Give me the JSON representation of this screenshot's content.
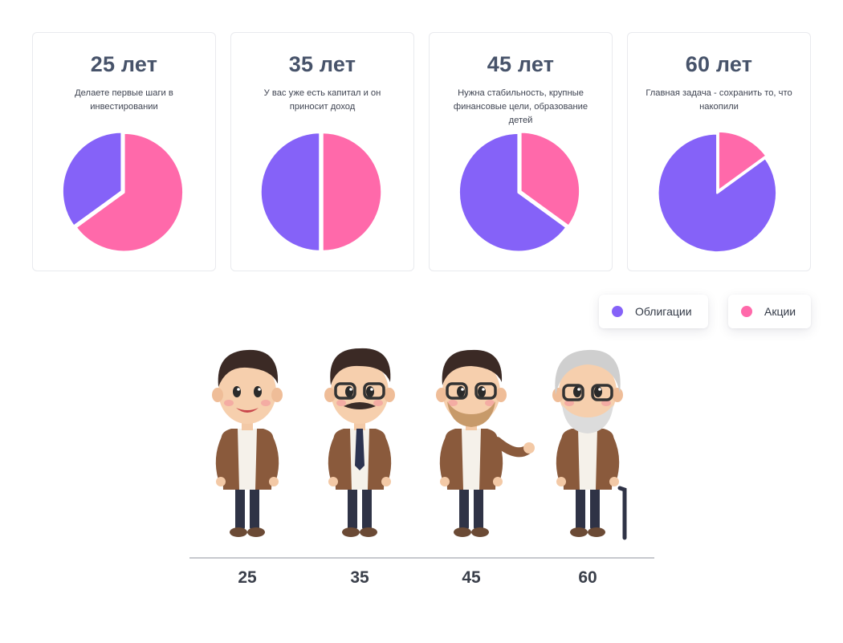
{
  "colors": {
    "bonds": "#8562f8",
    "stocks": "#ff69aa"
  },
  "chart_data": {
    "type": "pie",
    "series_names": [
      "Облигации",
      "Акции"
    ],
    "charts": [
      {
        "title": "25 лет",
        "description": "Делаете первые шаги в инвестировании",
        "bonds": 35,
        "stocks": 65
      },
      {
        "title": "35 лет",
        "description": "У вас уже есть капитал и он приносит доход",
        "bonds": 50,
        "stocks": 50
      },
      {
        "title": "45 лет",
        "description": "Нужна стабильность, крупные финансовые цели, образование детей",
        "bonds": 65,
        "stocks": 35
      },
      {
        "title": "60 лет",
        "description": "Главная задача - сохранить то, что накопили",
        "bonds": 85,
        "stocks": 15
      }
    ]
  },
  "legend": {
    "bonds_label": "Облигации",
    "stocks_label": "Акции"
  },
  "timeline": {
    "ages": [
      "25",
      "35",
      "45",
      "60"
    ]
  }
}
